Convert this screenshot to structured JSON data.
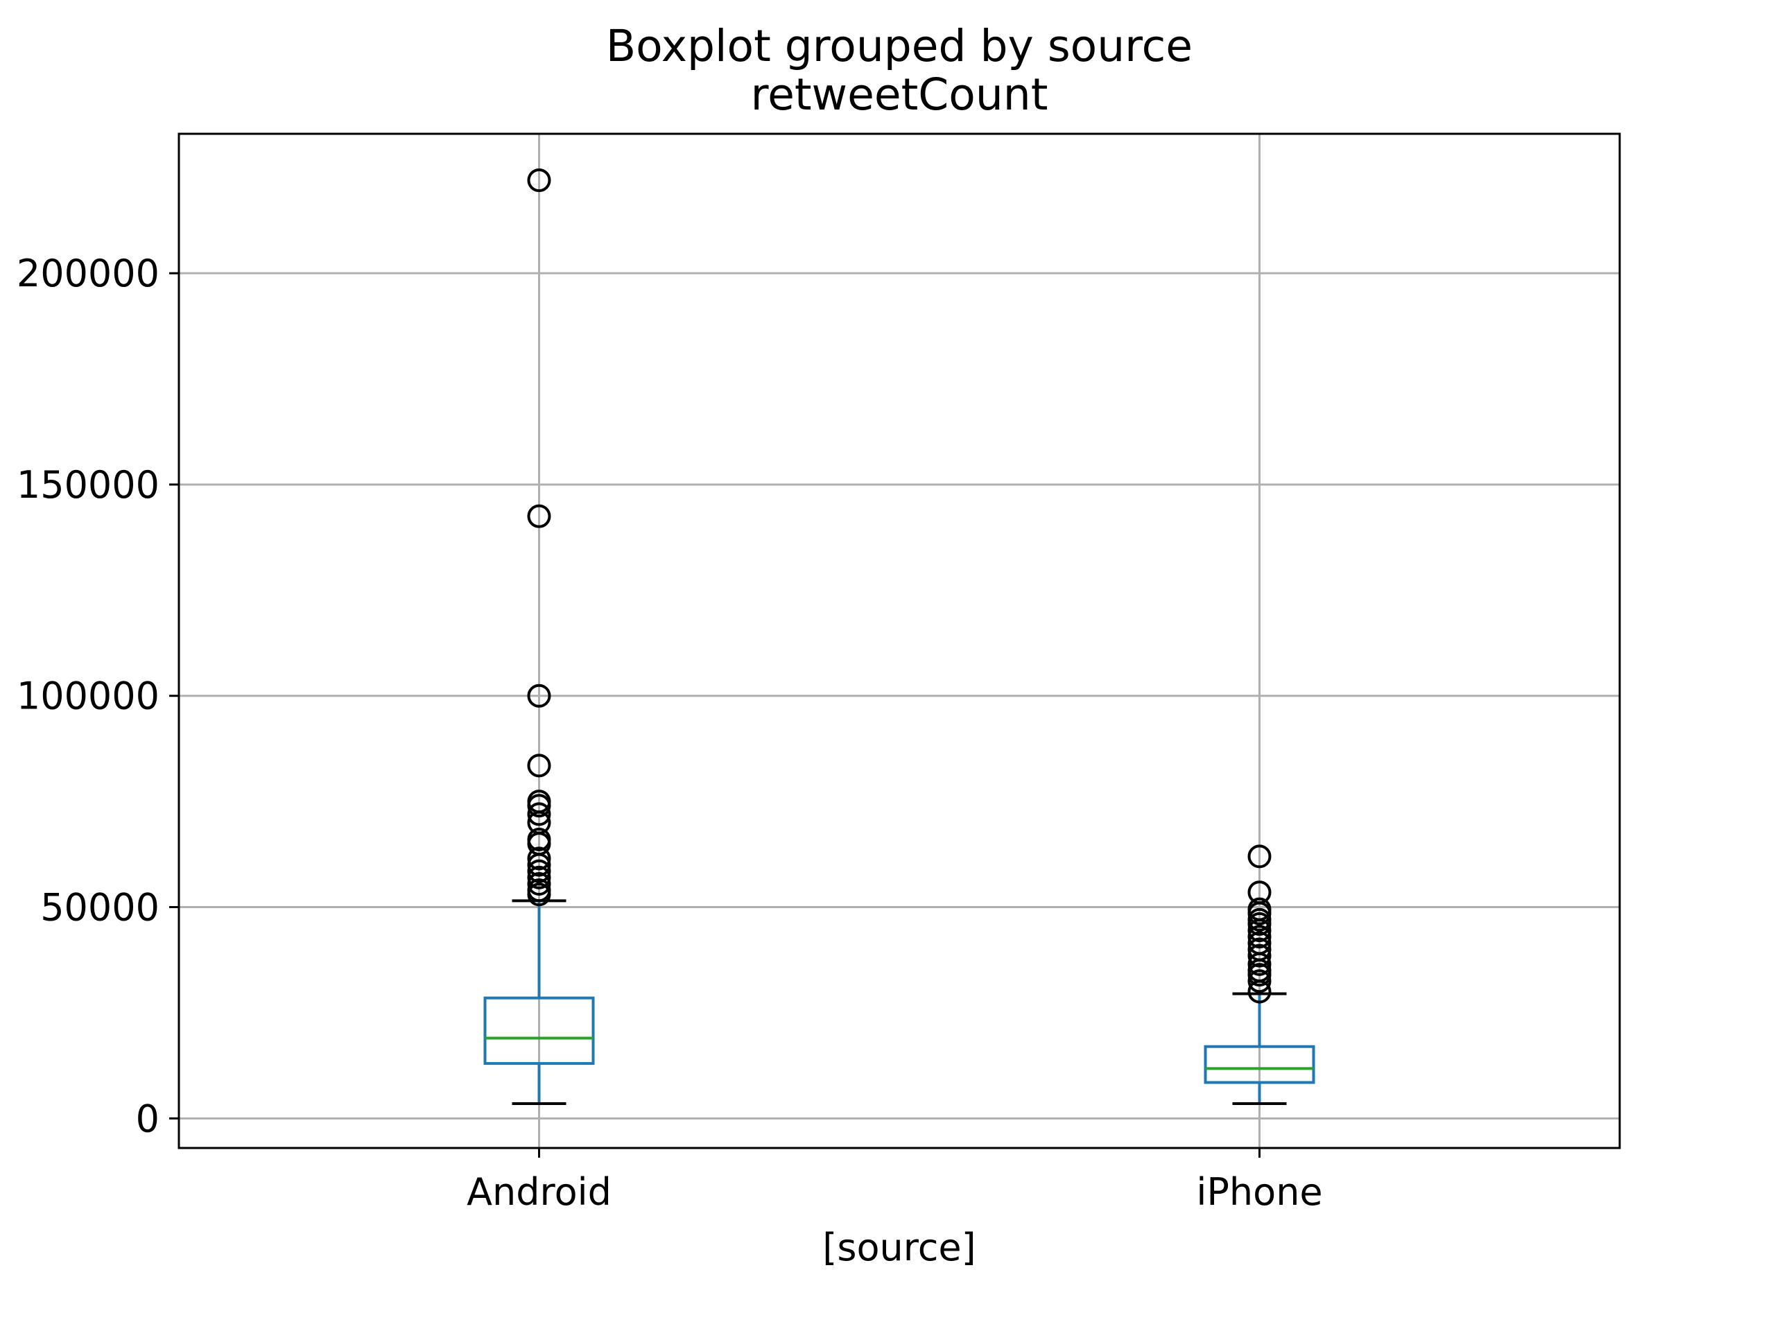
{
  "chart_data": {
    "type": "boxplot",
    "title": "Boxplot grouped by source",
    "subtitle": "retweetCount",
    "xlabel": "[source]",
    "ylabel": "",
    "ylim": [
      -7000,
      233000
    ],
    "yticks": [
      0,
      50000,
      100000,
      150000,
      200000
    ],
    "grid": true,
    "categories": [
      "Android",
      "iPhone"
    ],
    "boxes": [
      {
        "name": "Android",
        "whisker_low": 3500,
        "q1": 13000,
        "median": 19000,
        "q3": 28500,
        "whisker_high": 51500,
        "outliers": [
          222000,
          142500,
          100000,
          83500,
          75000,
          74000,
          72000,
          70000,
          66000,
          65000,
          61500,
          60000,
          58500,
          57000,
          55500,
          54000,
          53000
        ]
      },
      {
        "name": "iPhone",
        "whisker_low": 3500,
        "q1": 8500,
        "median": 11800,
        "q3": 17000,
        "whisker_high": 29500,
        "outliers": [
          62000,
          53500,
          49500,
          48500,
          47000,
          46000,
          44500,
          43000,
          41500,
          40000,
          38500,
          36500,
          35000,
          34000,
          32500,
          30000
        ]
      }
    ],
    "colors": {
      "box": "#1f77b4",
      "median": "#2ca02c",
      "caps": "#000000",
      "outlier_edge": "#000000",
      "grid": "#b0b0b0",
      "axes": "#000000"
    }
  }
}
